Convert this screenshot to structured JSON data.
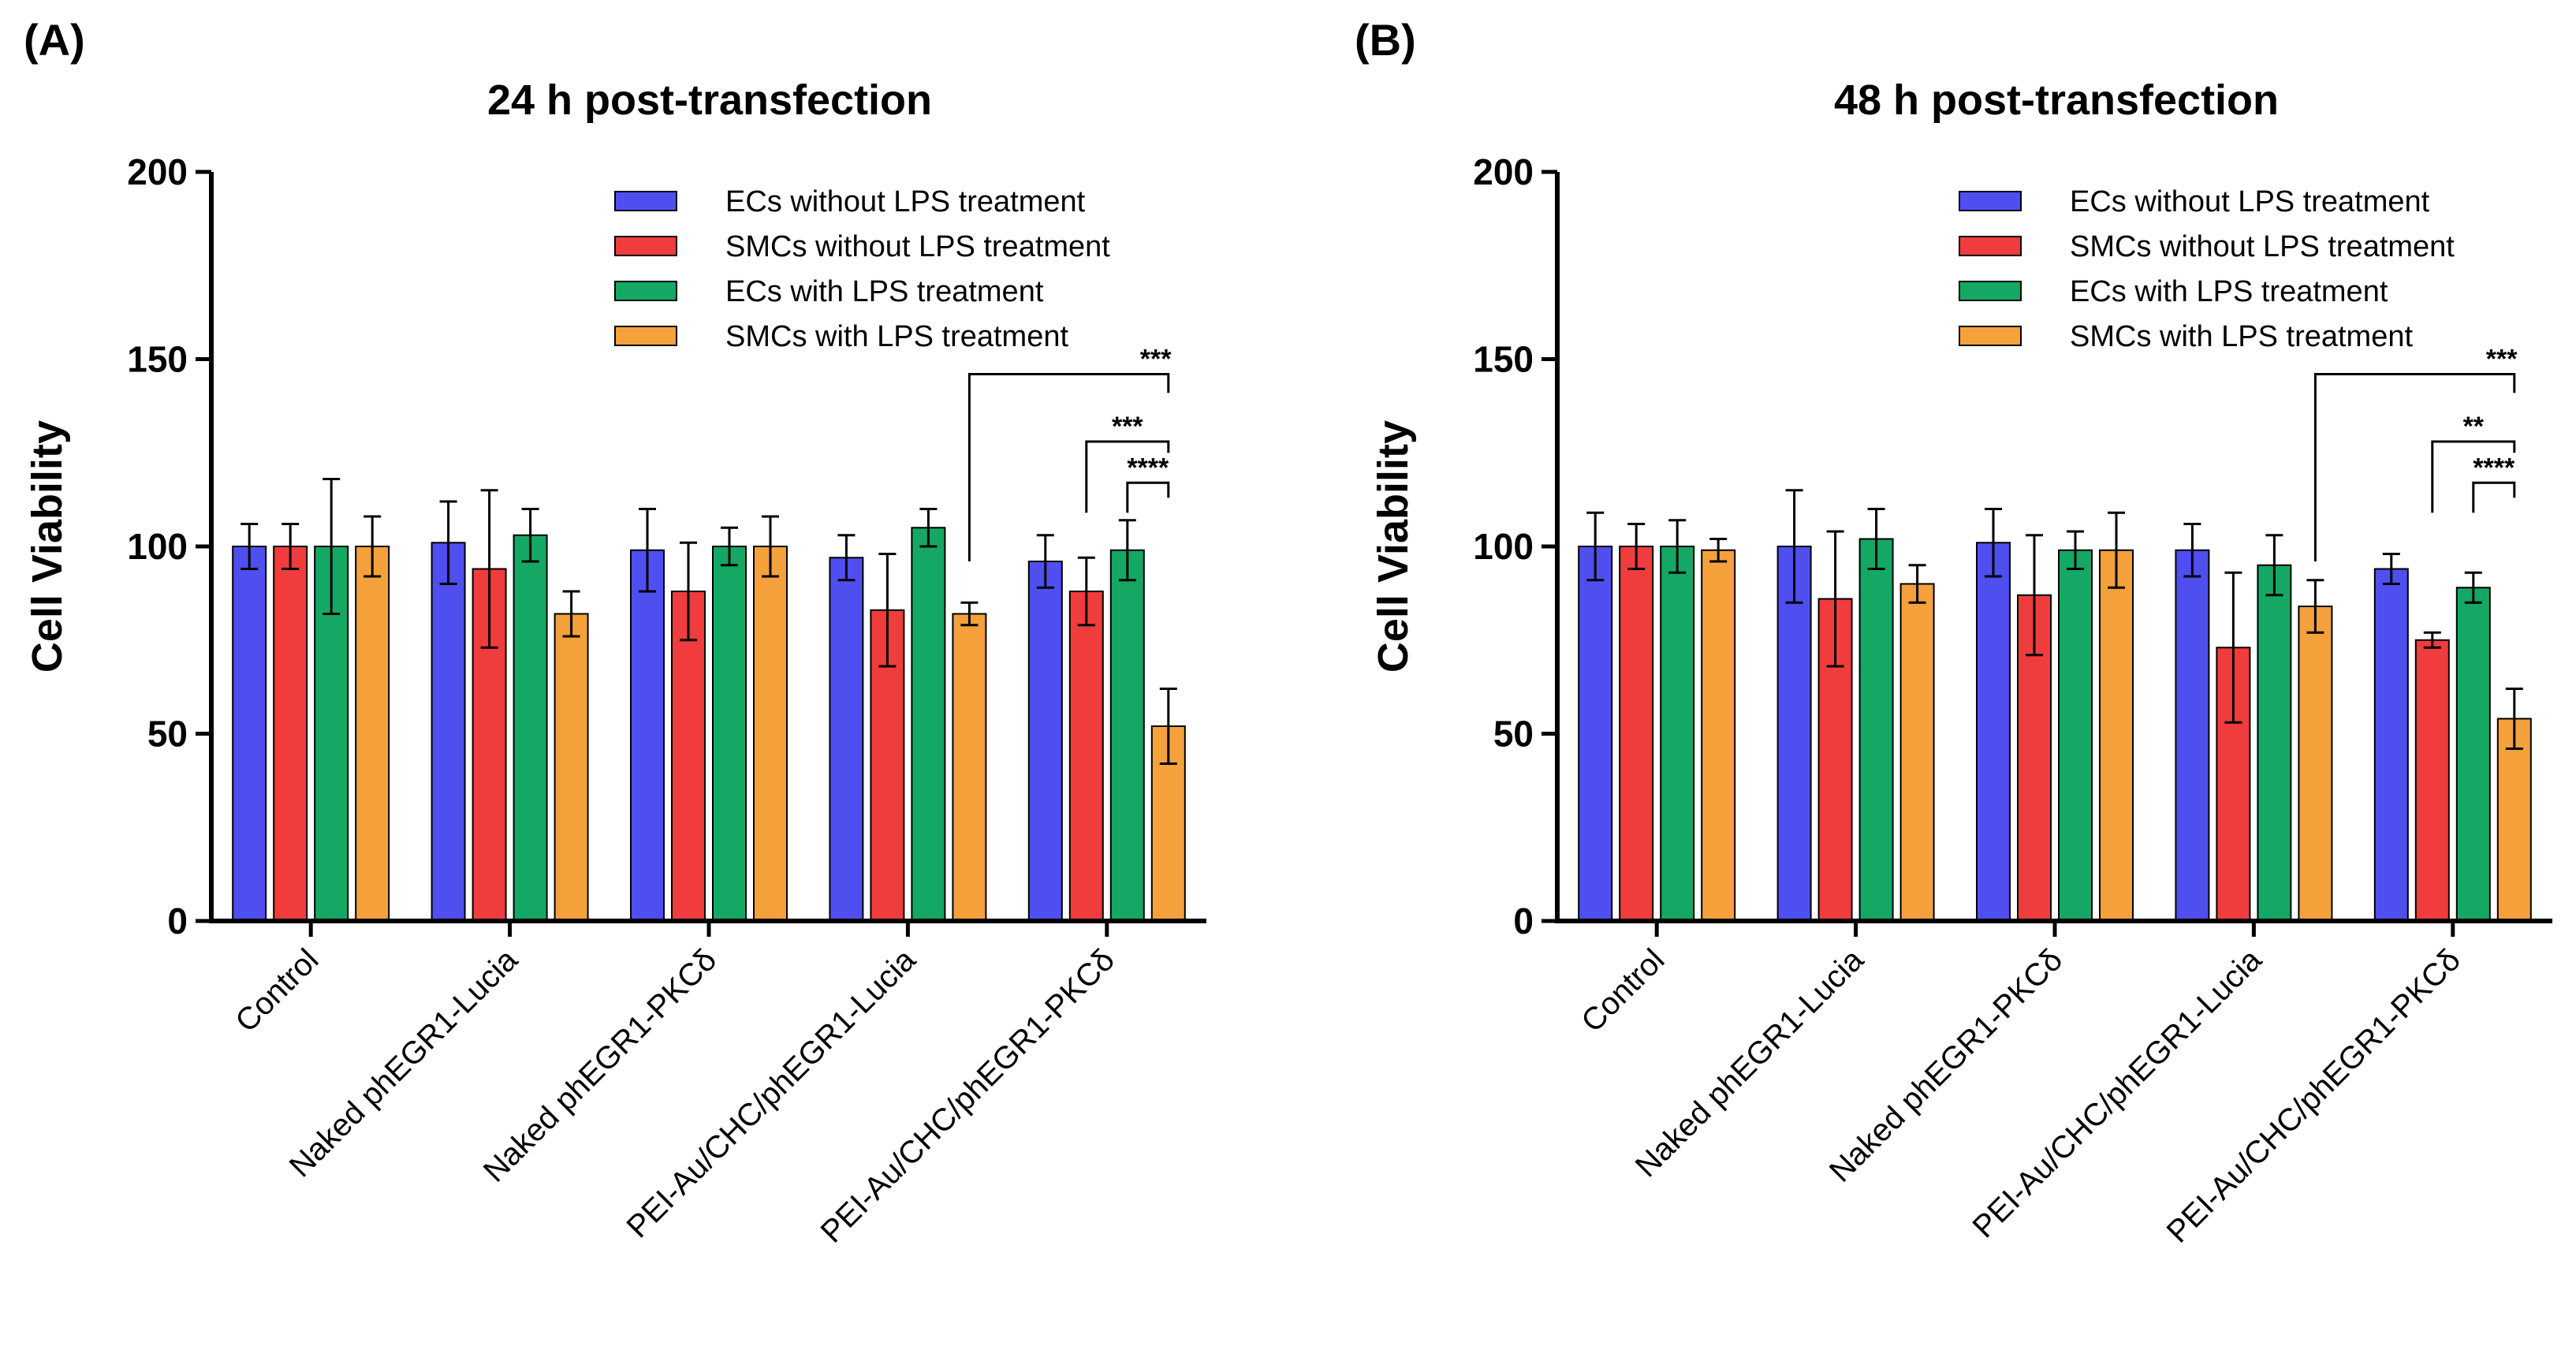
{
  "chart_data": [
    {
      "type": "bar",
      "panel": "(A)",
      "title": "24 h post-transfection",
      "xlabel": "",
      "ylabel": "Cell Viability",
      "ylim": [
        0,
        200
      ],
      "yticks": [
        0,
        50,
        100,
        150,
        200
      ],
      "grid": false,
      "legend_position": "top-right",
      "categories": [
        "Control",
        "Naked phEGR1-Lucia",
        "Naked phEGR1-PKCδ",
        "PEI-Au/CHC/phEGR1-Lucia",
        "PEI-Au/CHC/phEGR1-PKCδ"
      ],
      "series": [
        {
          "name": "ECs without LPS treatment",
          "color": "#4f4ff0",
          "values": [
            100,
            101,
            99,
            97,
            96
          ],
          "errors": [
            6,
            11,
            11,
            6,
            7
          ]
        },
        {
          "name": "SMCs without LPS treatment",
          "color": "#f03c3c",
          "values": [
            100,
            94,
            88,
            83,
            88
          ],
          "errors": [
            6,
            21,
            13,
            15,
            9
          ]
        },
        {
          "name": "ECs with LPS treatment",
          "color": "#14a864",
          "values": [
            100,
            103,
            100,
            105,
            99
          ],
          "errors": [
            18,
            7,
            5,
            5,
            8
          ]
        },
        {
          "name": "SMCs with LPS treatment",
          "color": "#f4a13c",
          "values": [
            100,
            82,
            100,
            82,
            52
          ],
          "errors": [
            8,
            6,
            8,
            3,
            10
          ]
        }
      ],
      "significance": [
        {
          "label": "***",
          "from": "PEI-Au/CHC/phEGR1-Lucia / SMCs with LPS treatment",
          "to": "PEI-Au/CHC/phEGR1-PKCδ / SMCs with LPS treatment"
        },
        {
          "label": "***",
          "from": "PEI-Au/CHC/phEGR1-PKCδ / SMCs without LPS treatment",
          "to": "PEI-Au/CHC/phEGR1-PKCδ / SMCs with LPS treatment"
        },
        {
          "label": "****",
          "from": "PEI-Au/CHC/phEGR1-PKCδ / ECs with LPS treatment",
          "to": "PEI-Au/CHC/phEGR1-PKCδ / SMCs with LPS treatment"
        }
      ]
    },
    {
      "type": "bar",
      "panel": "(B)",
      "title": "48 h post-transfection",
      "xlabel": "",
      "ylabel": "Cell Viability",
      "ylim": [
        0,
        200
      ],
      "yticks": [
        0,
        50,
        100,
        150,
        200
      ],
      "grid": false,
      "legend_position": "top-right",
      "categories": [
        "Control",
        "Naked phEGR1-Lucia",
        "Naked phEGR1-PKCδ",
        "PEI-Au/CHC/phEGR1-Lucia",
        "PEI-Au/CHC/phEGR1-PKCδ"
      ],
      "series": [
        {
          "name": "ECs without LPS treatment",
          "color": "#4f4ff0",
          "values": [
            100,
            100,
            101,
            99,
            94
          ],
          "errors": [
            9,
            15,
            9,
            7,
            4
          ]
        },
        {
          "name": "SMCs without LPS treatment",
          "color": "#f03c3c",
          "values": [
            100,
            86,
            87,
            73,
            75
          ],
          "errors": [
            6,
            18,
            16,
            20,
            2
          ]
        },
        {
          "name": "ECs with LPS treatment",
          "color": "#14a864",
          "values": [
            100,
            102,
            99,
            95,
            89
          ],
          "errors": [
            7,
            8,
            5,
            8,
            4
          ]
        },
        {
          "name": "SMCs with LPS treatment",
          "color": "#f4a13c",
          "values": [
            99,
            90,
            99,
            84,
            54
          ],
          "errors": [
            3,
            5,
            10,
            7,
            8
          ]
        }
      ],
      "significance": [
        {
          "label": "***",
          "from": "PEI-Au/CHC/phEGR1-Lucia / SMCs with LPS treatment",
          "to": "PEI-Au/CHC/phEGR1-PKCδ / SMCs with LPS treatment"
        },
        {
          "label": "**",
          "from": "PEI-Au/CHC/phEGR1-PKCδ / SMCs without LPS treatment",
          "to": "PEI-Au/CHC/phEGR1-PKCδ / SMCs with LPS treatment"
        },
        {
          "label": "****",
          "from": "PEI-Au/CHC/phEGR1-PKCδ / ECs with LPS treatment",
          "to": "PEI-Au/CHC/phEGR1-PKCδ / SMCs with LPS treatment"
        }
      ]
    }
  ]
}
